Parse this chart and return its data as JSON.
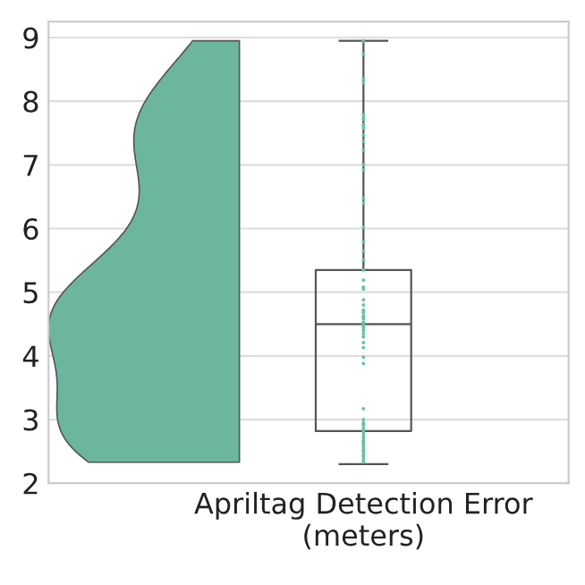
{
  "chart_data": {
    "type": "box",
    "categories": [
      "Apriltag Detection Error\n(meters)"
    ],
    "ylim": [
      2,
      9.25
    ],
    "yticks": [
      2,
      3,
      4,
      5,
      6,
      7,
      8,
      9
    ],
    "grid": "y",
    "series": [
      {
        "color": "#555555",
        "boxes": [
          {
            "low": 2.3,
            "q1": 2.82,
            "median": 4.5,
            "q3": 5.35,
            "high": 8.95
          }
        ]
      },
      {
        "type": "scatter",
        "color": "#66c2a5",
        "x": [
          "Apriltag Detection Error\n(meters)",
          "Apriltag Detection Error\n(meters)",
          "Apriltag Detection Error\n(meters)",
          "Apriltag Detection Error\n(meters)",
          "Apriltag Detection Error\n(meters)",
          "Apriltag Detection Error\n(meters)",
          "Apriltag Detection Error\n(meters)",
          "Apriltag Detection Error\n(meters)",
          "Apriltag Detection Error\n(meters)",
          "Apriltag Detection Error\n(meters)",
          "Apriltag Detection Error\n(meters)",
          "Apriltag Detection Error\n(meters)",
          "Apriltag Detection Error\n(meters)",
          "Apriltag Detection Error\n(meters)",
          "Apriltag Detection Error\n(meters)",
          "Apriltag Detection Error\n(meters)",
          "Apriltag Detection Error\n(meters)",
          "Apriltag Detection Error\n(meters)",
          "Apriltag Detection Error\n(meters)",
          "Apriltag Detection Error\n(meters)",
          "Apriltag Detection Error\n(meters)",
          "Apriltag Detection Error\n(meters)",
          "Apriltag Detection Error\n(meters)",
          "Apriltag Detection Error\n(meters)",
          "Apriltag Detection Error\n(meters)",
          "Apriltag Detection Error\n(meters)",
          "Apriltag Detection Error\n(meters)",
          "Apriltag Detection Error\n(meters)",
          "Apriltag Detection Error\n(meters)",
          "Apriltag Detection Error\n(meters)",
          "Apriltag Detection Error\n(meters)",
          "Apriltag Detection Error\n(meters)",
          "Apriltag Detection Error\n(meters)",
          "Apriltag Detection Error\n(meters)",
          "Apriltag Detection Error\n(meters)",
          "Apriltag Detection Error\n(meters)",
          "Apriltag Detection Error\n(meters)",
          "Apriltag Detection Error\n(meters)",
          "Apriltag Detection Error\n(meters)",
          "Apriltag Detection Error\n(meters)",
          "Apriltag Detection Error\n(meters)",
          "Apriltag Detection Error\n(meters)",
          "Apriltag Detection Error\n(meters)",
          "Apriltag Detection Error\n(meters)",
          "Apriltag Detection Error\n(meters)",
          "Apriltag Detection Error\n(meters)",
          "Apriltag Detection Error\n(meters)",
          "Apriltag Detection Error\n(meters)",
          "Apriltag Detection Error\n(meters)",
          "Apriltag Detection Error\n(meters)",
          "Apriltag Detection Error\n(meters)",
          "Apriltag Detection Error\n(meters)",
          "Apriltag Detection Error\n(meters)",
          "Apriltag Detection Error\n(meters)",
          "Apriltag Detection Error\n(meters)",
          "Apriltag Detection Error\n(meters)",
          "Apriltag Detection Error\n(meters)",
          "Apriltag Detection Error\n(meters)",
          "Apriltag Detection Error\n(meters)",
          "Apriltag Detection Error\n(meters)",
          "Apriltag Detection Error\n(meters)",
          "Apriltag Detection Error\n(meters)",
          "Apriltag Detection Error\n(meters)",
          "Apriltag Detection Error\n(meters)",
          "Apriltag Detection Error\n(meters)"
        ],
        "values": [
          8.95,
          8.74,
          8.35,
          8.29,
          7.79,
          7.74,
          7.72,
          7.63,
          7.62,
          7.58,
          7.47,
          7.37,
          7.23,
          7.0,
          6.92,
          6.48,
          6.4,
          6.02,
          5.79,
          5.65,
          5.51,
          5.35,
          5.19,
          5.08,
          5.05,
          4.88,
          4.8,
          4.72,
          4.71,
          4.68,
          4.63,
          4.61,
          4.58,
          4.53,
          4.49,
          4.47,
          4.44,
          4.4,
          4.35,
          4.3,
          4.21,
          4.13,
          3.98,
          3.88,
          3.17,
          3.0,
          2.95,
          2.93,
          2.91,
          2.86,
          2.81,
          2.77,
          2.72,
          2.67,
          2.65,
          2.63,
          2.61,
          2.58,
          2.53,
          2.52,
          2.49,
          2.44,
          2.42,
          2.37,
          2.33
        ]
      }
    ]
  }
}
